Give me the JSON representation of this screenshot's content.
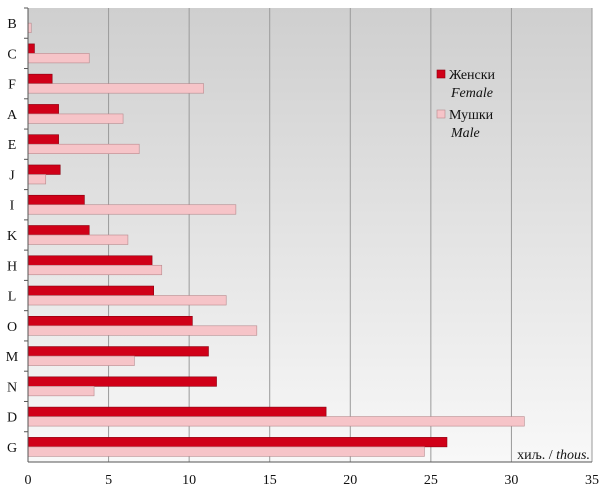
{
  "chart_data": {
    "type": "bar",
    "orientation": "horizontal",
    "categories": [
      "B",
      "C",
      "F",
      "A",
      "E",
      "J",
      "I",
      "K",
      "H",
      "L",
      "O",
      "M",
      "N",
      "D",
      "G"
    ],
    "series": [
      {
        "name": "Женски",
        "name_secondary": "Female",
        "color": "#d00018",
        "values": [
          0,
          0.4,
          1.5,
          1.9,
          1.9,
          2.0,
          3.5,
          3.8,
          7.7,
          7.8,
          10.2,
          11.2,
          11.7,
          18.5,
          26.0
        ]
      },
      {
        "name": "Мушки",
        "name_secondary": "Male",
        "color": "#f6c4c8",
        "values": [
          0.2,
          3.8,
          10.9,
          5.9,
          6.9,
          1.1,
          12.9,
          6.2,
          8.3,
          12.3,
          14.2,
          6.6,
          4.1,
          30.8,
          24.6
        ]
      }
    ],
    "xticks": [
      "0",
      "5",
      "10",
      "15",
      "20",
      "25",
      "30",
      "35"
    ],
    "xlim": [
      0,
      35
    ],
    "grid": true,
    "legend_position": "top-right",
    "unit_label_main": "хиљ. / ",
    "unit_label_italic": "thous.",
    "colors": {
      "background_top": "#cfcfcf",
      "background_bottom": "#f8f8f8",
      "grid": "#9a9a9a"
    }
  }
}
